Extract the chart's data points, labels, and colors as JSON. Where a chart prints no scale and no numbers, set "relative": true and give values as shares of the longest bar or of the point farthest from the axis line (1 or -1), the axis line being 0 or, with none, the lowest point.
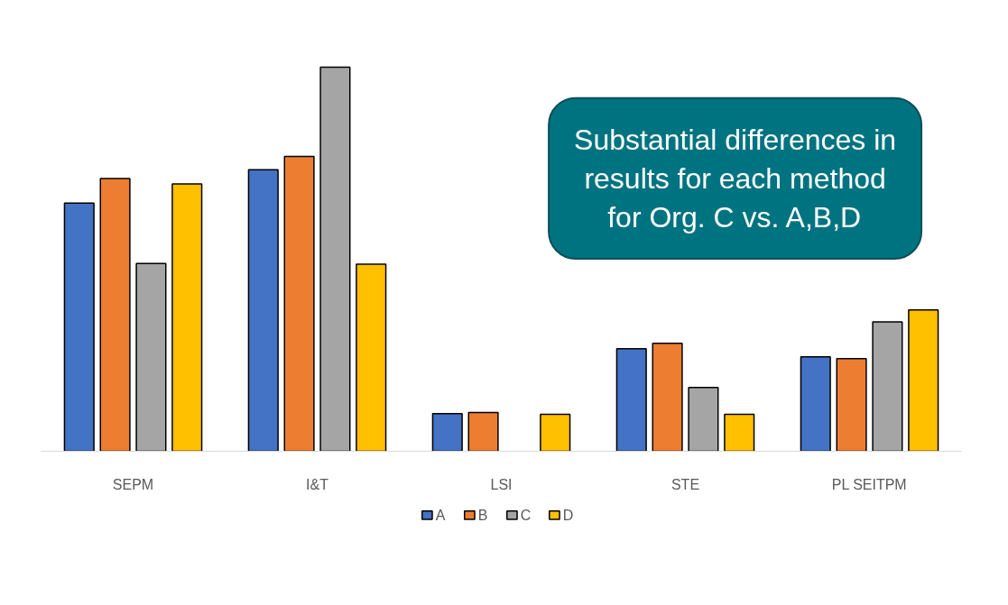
{
  "chart_data": {
    "type": "bar",
    "relative": true,
    "categories": [
      "SEPM",
      "I&T",
      "LSI",
      "STE",
      "PL SEITPM"
    ],
    "series": [
      {
        "name": "A",
        "color": "#4472c4",
        "values": [
          0.646,
          0.733,
          0.098,
          0.267,
          0.246
        ]
      },
      {
        "name": "B",
        "color": "#ed7d31",
        "values": [
          0.71,
          0.768,
          0.101,
          0.281,
          0.241
        ]
      },
      {
        "name": "C",
        "color": "#a5a5a5",
        "values": [
          0.489,
          1,
          null,
          0.166,
          0.337
        ]
      },
      {
        "name": "D",
        "color": "#ffc000",
        "values": [
          0.696,
          0.487,
          0.096,
          0.096,
          0.368
        ]
      }
    ],
    "annotations": [
      "Substantial differences in\nresults for each method\nfor Org. C vs. A,B,D"
    ],
    "legend": "bottom",
    "grid": false
  }
}
